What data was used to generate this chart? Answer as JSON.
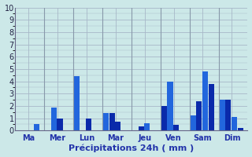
{
  "xlabel": "Précipitations 24h ( mm )",
  "background_color": "#cce8e8",
  "grid_color": "#a8b8c8",
  "bar_color_dark": "#0a2aaa",
  "bar_color_light": "#2266dd",
  "ylim": [
    0,
    10
  ],
  "yticks": [
    0,
    1,
    2,
    3,
    4,
    5,
    6,
    7,
    8,
    9,
    10
  ],
  "day_labels": [
    "Ma",
    "Mer",
    "Lun",
    "Mar",
    "Jeu",
    "Ven",
    "Sam",
    "Dim"
  ],
  "n_days": 8,
  "bars_per_day": 4,
  "bar_values": [
    [
      0.0,
      0.0,
      0.0,
      0.5
    ],
    [
      0.0,
      1.9,
      1.0,
      0.0
    ],
    [
      4.4,
      0.0,
      1.0,
      0.0
    ],
    [
      1.4,
      1.4,
      0.75,
      0.0
    ],
    [
      0.0,
      0.35,
      0.6,
      0.0
    ],
    [
      2.0,
      4.0,
      0.45,
      0.0
    ],
    [
      1.2,
      2.35,
      4.8,
      3.8
    ],
    [
      2.5,
      2.5,
      1.1,
      0.2
    ]
  ],
  "bar_colors": [
    [
      "#0a2aaa",
      "#0a2aaa",
      "#0a2aaa",
      "#2266dd"
    ],
    [
      "#0a2aaa",
      "#2266dd",
      "#0a2aaa",
      "#0a2aaa"
    ],
    [
      "#2266dd",
      "#0a2aaa",
      "#0a2aaa",
      "#0a2aaa"
    ],
    [
      "#2266dd",
      "#0a2aaa",
      "#0a2aaa",
      "#0a2aaa"
    ],
    [
      "#0a2aaa",
      "#0a2aaa",
      "#2266dd",
      "#0a2aaa"
    ],
    [
      "#0a2aaa",
      "#2266dd",
      "#0a2aaa",
      "#0a2aaa"
    ],
    [
      "#2266dd",
      "#0a2aaa",
      "#2266dd",
      "#0a2aaa"
    ],
    [
      "#2266dd",
      "#0a2aaa",
      "#2266dd",
      "#0a2aaa"
    ]
  ]
}
